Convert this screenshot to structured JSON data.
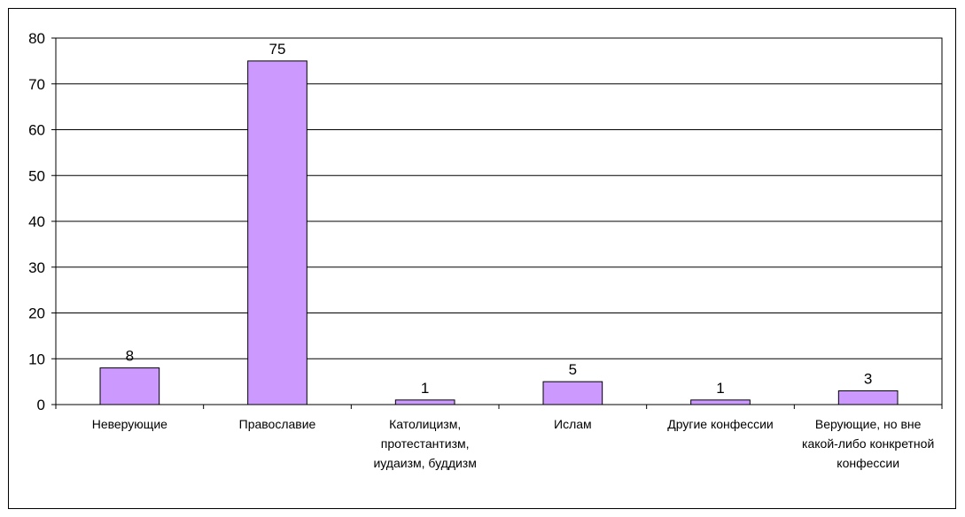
{
  "chart_data": {
    "type": "bar",
    "categories": [
      "Неверующие",
      "Православие",
      "Католицизм, протестантизм, иудаизм, буддизм",
      "Ислам",
      "Другие конфессии",
      "Верующие, но вне какой-либо конкретной конфессии"
    ],
    "values": [
      8,
      75,
      1,
      5,
      1,
      3
    ],
    "color": "#cc99ff",
    "ylim": [
      0,
      80
    ],
    "yticks": [
      0,
      10,
      20,
      30,
      40,
      50,
      60,
      70,
      80
    ],
    "grid": true
  }
}
